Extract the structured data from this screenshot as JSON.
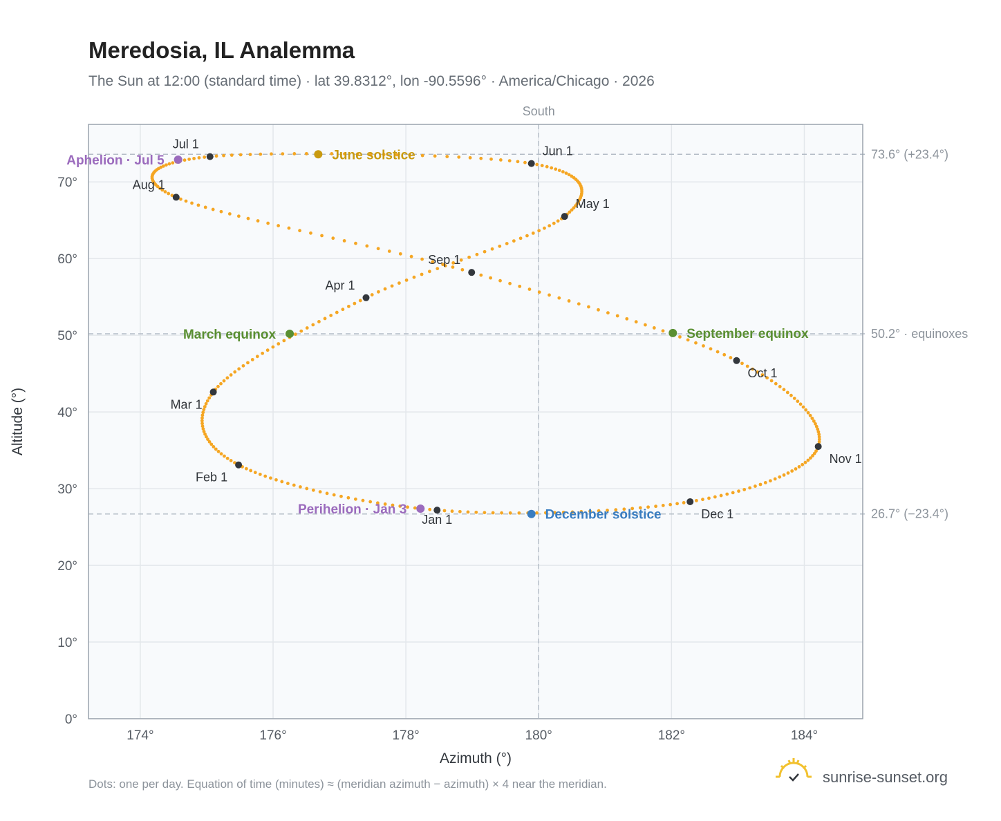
{
  "header": {
    "title": "Meredosia, IL Analemma",
    "subtitle": "The Sun at 12:00 (standard time) · lat 39.8312°, lon -90.5596° · America/Chicago · 2026"
  },
  "footer": {
    "note": "Dots: one per day. Equation of time (minutes) ≈ (meridian azimuth − azimuth) × 4 near the meridian.",
    "brand": "sunrise-sunset.org",
    "brand_icon": "sun-check-icon"
  },
  "colors": {
    "curve": "#f5a623",
    "month_dot": "#33373d",
    "june_solstice": "#c99a0f",
    "december_solstice": "#3a7dc0",
    "equinox": "#5a8f32",
    "apsis": "#9b6bbd",
    "grid": "#e3e7eb",
    "plot_bg": "#f8fafc",
    "frame": "#9aa3ad",
    "ref_line": "#b3bcc6"
  },
  "chart_data": {
    "type": "scatter",
    "title": "Meredosia, IL Analemma",
    "xlabel": "Azimuth (°)",
    "ylabel": "Altitude (°)",
    "xlim": [
      173.22,
      184.88
    ],
    "ylim": [
      0,
      77.5
    ],
    "x_ticks": [
      174,
      176,
      178,
      180,
      182,
      184
    ],
    "x_tick_labels": [
      "174°",
      "176°",
      "178°",
      "180°",
      "182°",
      "184°"
    ],
    "y_ticks": [
      0,
      10,
      20,
      30,
      40,
      50,
      60,
      70
    ],
    "y_tick_labels": [
      "0°",
      "10°",
      "20°",
      "30°",
      "40°",
      "50°",
      "60°",
      "70°"
    ],
    "grid": true,
    "meridian": {
      "azimuth": 180,
      "label": "South"
    },
    "reference_lines": [
      {
        "altitude": 73.6,
        "label": "73.6° (+23.4°)"
      },
      {
        "altitude": 50.2,
        "label": "50.2° · equinoxes"
      },
      {
        "altitude": 26.7,
        "label": "26.7° (−23.4°)"
      }
    ],
    "daily_path": {
      "description": "one dot per day",
      "anchors": [
        {
          "date": "Jan 1",
          "az": 178.47,
          "alt": 27.2
        },
        {
          "date": "Feb 1",
          "az": 175.48,
          "alt": 33.1
        },
        {
          "date": "Mar 1",
          "az": 175.1,
          "alt": 42.6
        },
        {
          "date": "Apr 1",
          "az": 177.4,
          "alt": 54.9
        },
        {
          "date": "May 1",
          "az": 180.39,
          "alt": 65.5
        },
        {
          "date": "Jun 1",
          "az": 179.89,
          "alt": 72.4
        },
        {
          "date": "Jul 1",
          "az": 175.05,
          "alt": 73.3
        },
        {
          "date": "Aug 1",
          "az": 174.54,
          "alt": 68.0
        },
        {
          "date": "Sep 1",
          "az": 178.99,
          "alt": 58.2
        },
        {
          "date": "Oct 1",
          "az": 182.98,
          "alt": 46.7
        },
        {
          "date": "Nov 1",
          "az": 184.21,
          "alt": 35.5
        },
        {
          "date": "Dec 1",
          "az": 182.28,
          "alt": 28.3
        }
      ]
    },
    "month_markers": [
      {
        "label": "Jan 1",
        "az": 178.47,
        "alt": 27.2,
        "label_pos": "below"
      },
      {
        "label": "Feb 1",
        "az": 175.48,
        "alt": 33.1,
        "label_pos": "below-left"
      },
      {
        "label": "Mar 1",
        "az": 175.1,
        "alt": 42.6,
        "label_pos": "below-left"
      },
      {
        "label": "Apr 1",
        "az": 177.4,
        "alt": 54.9,
        "label_pos": "above-left"
      },
      {
        "label": "May 1",
        "az": 180.39,
        "alt": 65.5,
        "label_pos": "above-right"
      },
      {
        "label": "Jun 1",
        "az": 179.89,
        "alt": 72.4,
        "label_pos": "above-right"
      },
      {
        "label": "Jul 1",
        "az": 175.05,
        "alt": 73.3,
        "label_pos": "above-left"
      },
      {
        "label": "Aug 1",
        "az": 174.54,
        "alt": 68.0,
        "label_pos": "above-left"
      },
      {
        "label": "Sep 1",
        "az": 178.99,
        "alt": 58.2,
        "label_pos": "above-left"
      },
      {
        "label": "Oct 1",
        "az": 182.98,
        "alt": 46.7,
        "label_pos": "below-right"
      },
      {
        "label": "Nov 1",
        "az": 184.21,
        "alt": 35.5,
        "label_pos": "below-right"
      },
      {
        "label": "Dec 1",
        "az": 182.28,
        "alt": 28.3,
        "label_pos": "below-right"
      }
    ],
    "events": [
      {
        "label": "June solstice",
        "az": 176.68,
        "alt": 73.6,
        "color": "#c99a0f",
        "label_side": "right"
      },
      {
        "label": "December solstice",
        "az": 179.89,
        "alt": 26.7,
        "color": "#3a7dc0",
        "label_side": "right"
      },
      {
        "label": "March equinox",
        "az": 176.25,
        "alt": 50.2,
        "color": "#5a8f32",
        "label_side": "left"
      },
      {
        "label": "September equinox",
        "az": 182.02,
        "alt": 50.3,
        "color": "#5a8f32",
        "label_side": "right"
      },
      {
        "label": "Aphelion · Jul 5",
        "az": 174.57,
        "alt": 72.9,
        "color": "#9b6bbd",
        "label_side": "left"
      },
      {
        "label": "Perihelion · Jan 3",
        "az": 178.22,
        "alt": 27.4,
        "color": "#9b6bbd",
        "label_side": "left"
      }
    ]
  }
}
